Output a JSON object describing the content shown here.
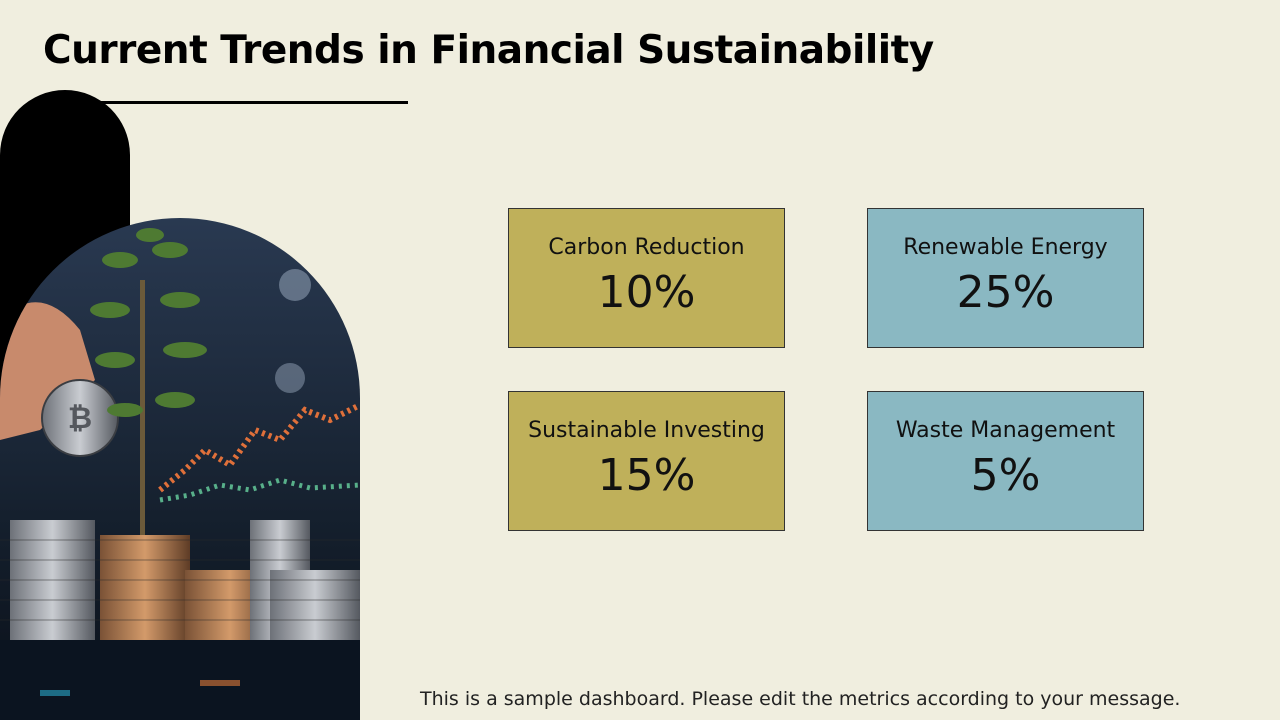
{
  "header": {
    "title": "Current Trends in Financial Sustainability"
  },
  "cards": [
    {
      "label": "Carbon Reduction",
      "value": "10%"
    },
    {
      "label": "Renewable Energy",
      "value": "25%"
    },
    {
      "label": "Sustainable Investing",
      "value": "15%"
    },
    {
      "label": "Waste Management",
      "value": "5%"
    }
  ],
  "footer": {
    "note": "This is a sample dashboard. Please edit the metrics according to your message."
  }
}
